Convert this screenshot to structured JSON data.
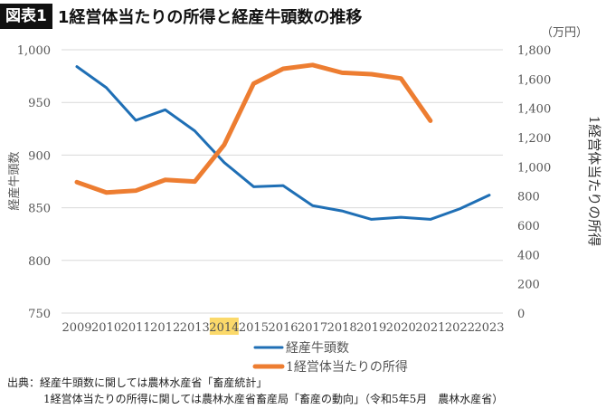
{
  "header": {
    "badge": "図表1",
    "title": "1経営体当たりの所得と経産牛頭数の推移"
  },
  "chart_data": {
    "type": "line",
    "title": "1経営体当たりの所得と経産牛頭数の推移",
    "categories": [
      "2009",
      "2010",
      "2011",
      "2012",
      "2013",
      "2014",
      "2015",
      "2016",
      "2017",
      "2018",
      "2019",
      "2020",
      "2021",
      "2022",
      "2023"
    ],
    "highlighted_category": "2014",
    "highlight_color": "#fbd96a",
    "y_left": {
      "label": "経産牛頭数",
      "ylim": [
        750,
        1000
      ],
      "ticks": [
        "750",
        "800",
        "850",
        "900",
        "950",
        "1,000"
      ]
    },
    "y_right": {
      "label": "1経営体当たりの所得",
      "unit": "（万円）",
      "ylim": [
        0,
        1800
      ],
      "ticks": [
        "0",
        "200",
        "400",
        "600",
        "800",
        "1,000",
        "1,200",
        "1,400",
        "1,600",
        "1,800"
      ]
    },
    "grid": true,
    "legend_position": "bottom",
    "series": [
      {
        "name": "経産牛頭数",
        "axis": "left",
        "color": "#1f6fb5",
        "values": [
          984,
          964,
          933,
          943,
          923,
          893,
          870,
          871,
          852,
          847,
          839,
          841,
          839,
          849,
          862
        ]
      },
      {
        "name": "1経営体当たりの所得",
        "axis": "right",
        "color": "#ed7d31",
        "values": [
          895,
          824,
          837,
          911,
          899,
          1150,
          1569,
          1670,
          1696,
          1643,
          1633,
          1604,
          1315,
          null,
          null
        ]
      }
    ]
  },
  "source": {
    "line1": "出典：経産牛頭数に関しては農林水産省「畜産統計」",
    "line2": "1経営体当たりの所得に関しては農林水産省畜産局「畜産の動向」（令和5年5月　農林水産省）"
  }
}
